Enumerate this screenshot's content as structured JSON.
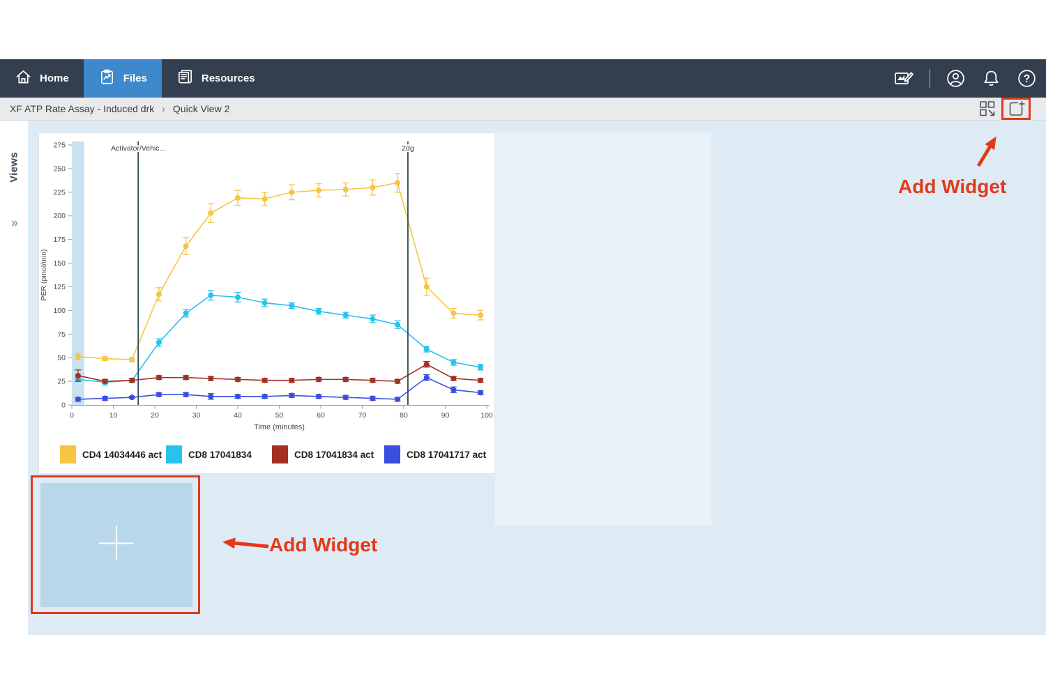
{
  "nav": {
    "tabs": [
      {
        "label": "Home",
        "icon": "home-icon",
        "active": false
      },
      {
        "label": "Files",
        "icon": "files-icon",
        "active": true
      },
      {
        "label": "Resources",
        "icon": "resources-icon",
        "active": false
      }
    ],
    "right_icons": [
      "report-edit-icon",
      "account-icon",
      "notifications-icon",
      "help-icon"
    ],
    "help_glyph": "?",
    "active_tab_color": "#3e88cc",
    "bar_color": "#333e4e"
  },
  "breadcrumb": {
    "file_name": "XF ATP Rate Assay - Induced drk",
    "separator": "›",
    "view_name": "Quick View 2"
  },
  "view_toolbar": {
    "icons": [
      "layout-icon",
      "add-widget-icon"
    ]
  },
  "sidebar": {
    "label": "Views",
    "expand_chevron": "»"
  },
  "annotation": {
    "label_top": "Add Widget",
    "label_bottom": "Add Widget",
    "color": "#e2391b"
  },
  "empty_widget": {
    "icon": "plus-icon",
    "fill": "#b9d7ea"
  },
  "chart_data": {
    "type": "line",
    "title": "",
    "xlabel": "Time (minutes)",
    "ylabel": "PER (pmol/min)",
    "xlim": [
      0,
      100
    ],
    "ylim": [
      0,
      275
    ],
    "xticks": [
      0,
      10,
      20,
      30,
      40,
      50,
      60,
      70,
      80,
      90,
      100
    ],
    "yticks": [
      0,
      25,
      50,
      75,
      100,
      125,
      150,
      175,
      200,
      225,
      250,
      275
    ],
    "grid": false,
    "legend_position": "bottom",
    "highlight_band": {
      "x0": 0,
      "x1": 3,
      "color": "#c9e1f1"
    },
    "event_lines": [
      {
        "x": 16,
        "label": "Activator/Vehic...",
        "color": "#2e4d50"
      },
      {
        "x": 81,
        "label": "2dg",
        "color": "#2e4d50"
      }
    ],
    "x": [
      1.5,
      8,
      14.5,
      21,
      27.5,
      33.5,
      40,
      46.5,
      53,
      59.5,
      66,
      72.5,
      78.5,
      85.5,
      92,
      98.5
    ],
    "series": [
      {
        "name": "CD4 14034446 act",
        "color": "#f6c544",
        "values": [
          51,
          49,
          48,
          117,
          168,
          203,
          219,
          218,
          225,
          227,
          228,
          230,
          235,
          125,
          97,
          95
        ],
        "errors": [
          3,
          2,
          2,
          7,
          9,
          10,
          8,
          7,
          8,
          7,
          7,
          8,
          10,
          9,
          5,
          5
        ]
      },
      {
        "name": "CD8 17041834",
        "color": "#29c2ec",
        "values": [
          27,
          24,
          26,
          66,
          97,
          116,
          114,
          108,
          105,
          99,
          95,
          91,
          85,
          59,
          45,
          40
        ],
        "errors": [
          2,
          3,
          2,
          4,
          4,
          5,
          5,
          4,
          3,
          3,
          3,
          4,
          4,
          3,
          3,
          3
        ]
      },
      {
        "name": "CD8 17041834 act",
        "color": "#a33021",
        "values": [
          31,
          25,
          26,
          29,
          29,
          28,
          27,
          26,
          26,
          27,
          27,
          26,
          25,
          43,
          28,
          26
        ],
        "errors": [
          6,
          2,
          2,
          2,
          2,
          2,
          2,
          2,
          2,
          2,
          2,
          2,
          2,
          3,
          2,
          2
        ]
      },
      {
        "name": "CD8 17041717 act",
        "color": "#3a4ee0",
        "values": [
          6,
          7,
          8,
          11,
          11,
          9,
          9,
          9,
          10,
          9,
          8,
          7,
          6,
          29,
          16,
          13
        ],
        "errors": [
          2,
          2,
          1,
          2,
          2,
          3,
          2,
          2,
          2,
          2,
          2,
          2,
          2,
          3,
          3,
          2
        ]
      }
    ]
  }
}
